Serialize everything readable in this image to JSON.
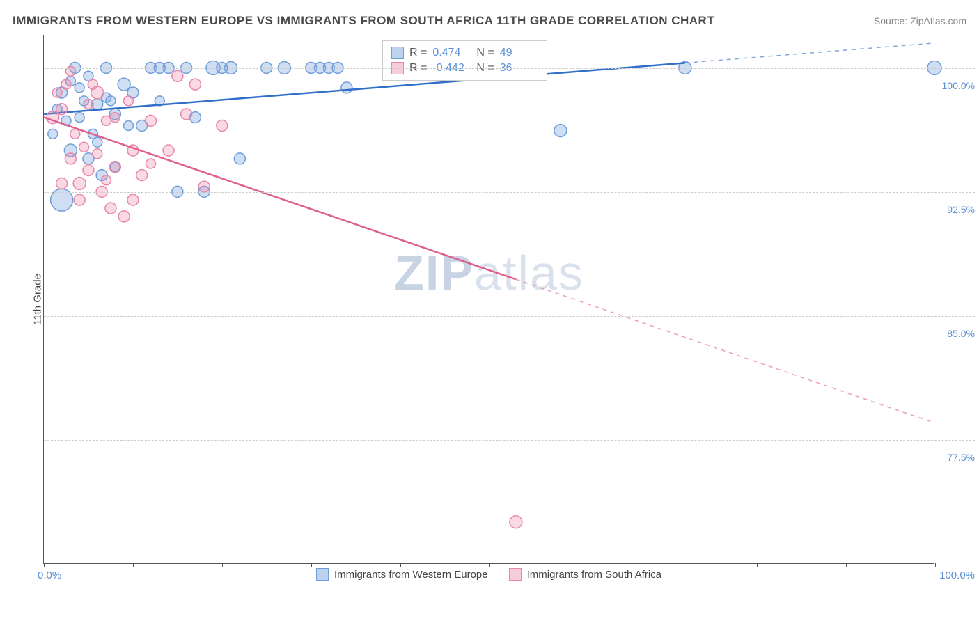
{
  "title": "IMMIGRANTS FROM WESTERN EUROPE VS IMMIGRANTS FROM SOUTH AFRICA 11TH GRADE CORRELATION CHART",
  "source_label": "Source: ZipAtlas.com",
  "y_axis_label": "11th Grade",
  "watermark": {
    "bold": "ZIP",
    "light": "atlas"
  },
  "chart": {
    "type": "scatter",
    "xlim": [
      0,
      100
    ],
    "ylim": [
      70,
      102
    ],
    "x_ticks": [
      0,
      10,
      20,
      30,
      40,
      50,
      60,
      70,
      80,
      90,
      100
    ],
    "y_gridlines": [
      77.5,
      85.0,
      92.5,
      100.0
    ],
    "y_tick_labels": [
      "77.5%",
      "85.0%",
      "92.5%",
      "100.0%"
    ],
    "x_min_label": "0.0%",
    "x_max_label": "100.0%",
    "background_color": "#ffffff",
    "grid_color": "#cccccc",
    "axis_color": "#555555",
    "text_color": "#5b8fd6"
  },
  "series": [
    {
      "name": "Immigrants from Western Europe",
      "color_fill": "rgba(120,160,220,0.35)",
      "color_stroke": "#6f9ed9",
      "line_color": "#2f6fc7",
      "swatch_fill": "#bcd2ef",
      "swatch_border": "#6f9ed9",
      "R_label": "R =",
      "R": "0.474",
      "N_label": "N =",
      "N": "49",
      "trend": {
        "x1": 0,
        "y1": 97.2,
        "x2": 100,
        "y2": 101.5,
        "solid_until_x": 72
      },
      "points": [
        {
          "x": 1,
          "y": 96,
          "r": 7
        },
        {
          "x": 1.5,
          "y": 97.5,
          "r": 7
        },
        {
          "x": 2,
          "y": 98.5,
          "r": 8
        },
        {
          "x": 2,
          "y": 92,
          "r": 16
        },
        {
          "x": 2.5,
          "y": 96.8,
          "r": 7
        },
        {
          "x": 3,
          "y": 99.2,
          "r": 7
        },
        {
          "x": 3,
          "y": 95,
          "r": 9
        },
        {
          "x": 3.5,
          "y": 100,
          "r": 8
        },
        {
          "x": 4,
          "y": 98.8,
          "r": 7
        },
        {
          "x": 4,
          "y": 97,
          "r": 7
        },
        {
          "x": 4.5,
          "y": 98,
          "r": 7
        },
        {
          "x": 5,
          "y": 94.5,
          "r": 8
        },
        {
          "x": 5,
          "y": 99.5,
          "r": 7
        },
        {
          "x": 5.5,
          "y": 96,
          "r": 7
        },
        {
          "x": 6,
          "y": 97.8,
          "r": 8
        },
        {
          "x": 6,
          "y": 95.5,
          "r": 7
        },
        {
          "x": 6.5,
          "y": 93.5,
          "r": 8
        },
        {
          "x": 7,
          "y": 98.2,
          "r": 7
        },
        {
          "x": 7,
          "y": 100,
          "r": 8
        },
        {
          "x": 7.5,
          "y": 98,
          "r": 7
        },
        {
          "x": 8,
          "y": 97.2,
          "r": 8
        },
        {
          "x": 8,
          "y": 94,
          "r": 7
        },
        {
          "x": 9,
          "y": 99,
          "r": 9
        },
        {
          "x": 9.5,
          "y": 96.5,
          "r": 7
        },
        {
          "x": 10,
          "y": 98.5,
          "r": 8
        },
        {
          "x": 11,
          "y": 96.5,
          "r": 8
        },
        {
          "x": 12,
          "y": 100,
          "r": 8
        },
        {
          "x": 13,
          "y": 98,
          "r": 7
        },
        {
          "x": 13,
          "y": 100,
          "r": 8
        },
        {
          "x": 14,
          "y": 100,
          "r": 8
        },
        {
          "x": 15,
          "y": 92.5,
          "r": 8
        },
        {
          "x": 16,
          "y": 100,
          "r": 8
        },
        {
          "x": 17,
          "y": 97,
          "r": 8
        },
        {
          "x": 18,
          "y": 92.5,
          "r": 8
        },
        {
          "x": 19,
          "y": 100,
          "r": 10
        },
        {
          "x": 20,
          "y": 100,
          "r": 8
        },
        {
          "x": 21,
          "y": 100,
          "r": 9
        },
        {
          "x": 22,
          "y": 94.5,
          "r": 8
        },
        {
          "x": 25,
          "y": 100,
          "r": 8
        },
        {
          "x": 27,
          "y": 100,
          "r": 9
        },
        {
          "x": 30,
          "y": 100,
          "r": 8
        },
        {
          "x": 31,
          "y": 100,
          "r": 8
        },
        {
          "x": 32,
          "y": 100,
          "r": 8
        },
        {
          "x": 33,
          "y": 100,
          "r": 8
        },
        {
          "x": 34,
          "y": 98.8,
          "r": 8
        },
        {
          "x": 40,
          "y": 100,
          "r": 8
        },
        {
          "x": 58,
          "y": 96.2,
          "r": 9
        },
        {
          "x": 72,
          "y": 100,
          "r": 9
        },
        {
          "x": 100,
          "y": 100,
          "r": 10
        }
      ]
    },
    {
      "name": "Immigrants from South Africa",
      "color_fill": "rgba(235,130,165,0.30)",
      "color_stroke": "#e887ab",
      "line_color": "#de5f8d",
      "swatch_fill": "#f7cdda",
      "swatch_border": "#e887ab",
      "R_label": "R =",
      "R": "-0.442",
      "N_label": "N =",
      "N": "36",
      "trend": {
        "x1": 0,
        "y1": 97.0,
        "x2": 100,
        "y2": 78.5,
        "solid_until_x": 53
      },
      "points": [
        {
          "x": 1,
          "y": 97,
          "r": 9
        },
        {
          "x": 1.5,
          "y": 98.5,
          "r": 7
        },
        {
          "x": 2,
          "y": 97.5,
          "r": 8
        },
        {
          "x": 2,
          "y": 93,
          "r": 8
        },
        {
          "x": 2.5,
          "y": 99,
          "r": 7
        },
        {
          "x": 3,
          "y": 94.5,
          "r": 8
        },
        {
          "x": 3,
          "y": 99.8,
          "r": 7
        },
        {
          "x": 3.5,
          "y": 96,
          "r": 7
        },
        {
          "x": 4,
          "y": 93,
          "r": 9
        },
        {
          "x": 4,
          "y": 92,
          "r": 8
        },
        {
          "x": 4.5,
          "y": 95.2,
          "r": 7
        },
        {
          "x": 5,
          "y": 97.8,
          "r": 7
        },
        {
          "x": 5,
          "y": 93.8,
          "r": 8
        },
        {
          "x": 5.5,
          "y": 99,
          "r": 7
        },
        {
          "x": 6,
          "y": 98.5,
          "r": 9
        },
        {
          "x": 6,
          "y": 94.8,
          "r": 7
        },
        {
          "x": 6.5,
          "y": 92.5,
          "r": 8
        },
        {
          "x": 7,
          "y": 96.8,
          "r": 7
        },
        {
          "x": 7,
          "y": 93.2,
          "r": 7
        },
        {
          "x": 7.5,
          "y": 91.5,
          "r": 8
        },
        {
          "x": 8,
          "y": 94,
          "r": 8
        },
        {
          "x": 8,
          "y": 97,
          "r": 7
        },
        {
          "x": 9,
          "y": 91,
          "r": 8
        },
        {
          "x": 9.5,
          "y": 98,
          "r": 7
        },
        {
          "x": 10,
          "y": 95,
          "r": 8
        },
        {
          "x": 10,
          "y": 92,
          "r": 8
        },
        {
          "x": 11,
          "y": 93.5,
          "r": 8
        },
        {
          "x": 12,
          "y": 96.8,
          "r": 8
        },
        {
          "x": 12,
          "y": 94.2,
          "r": 7
        },
        {
          "x": 14,
          "y": 95,
          "r": 8
        },
        {
          "x": 15,
          "y": 99.5,
          "r": 8
        },
        {
          "x": 16,
          "y": 97.2,
          "r": 8
        },
        {
          "x": 17,
          "y": 99,
          "r": 8
        },
        {
          "x": 18,
          "y": 92.8,
          "r": 8
        },
        {
          "x": 20,
          "y": 96.5,
          "r": 8
        },
        {
          "x": 53,
          "y": 72.5,
          "r": 9
        }
      ]
    }
  ],
  "bottom_legend": [
    {
      "label": "Immigrants from Western Europe",
      "series": 0
    },
    {
      "label": "Immigrants from South Africa",
      "series": 1
    }
  ]
}
